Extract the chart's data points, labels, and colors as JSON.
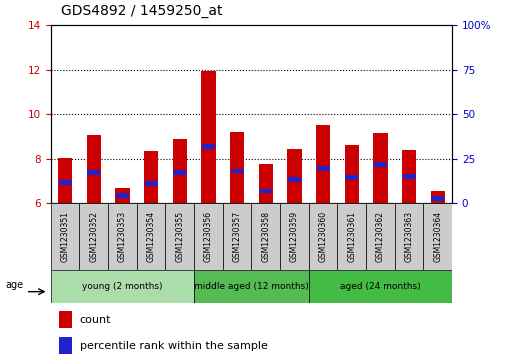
{
  "title": "GDS4892 / 1459250_at",
  "samples": [
    "GSM1230351",
    "GSM1230352",
    "GSM1230353",
    "GSM1230354",
    "GSM1230355",
    "GSM1230356",
    "GSM1230357",
    "GSM1230358",
    "GSM1230359",
    "GSM1230360",
    "GSM1230361",
    "GSM1230362",
    "GSM1230363",
    "GSM1230364"
  ],
  "count_values": [
    8.05,
    9.05,
    6.7,
    8.35,
    8.9,
    11.95,
    9.2,
    7.75,
    8.45,
    9.5,
    8.6,
    9.15,
    8.4,
    6.55
  ],
  "percentile_values": [
    6.95,
    7.4,
    6.35,
    6.9,
    7.4,
    8.55,
    7.45,
    6.55,
    7.05,
    7.55,
    7.15,
    7.75,
    7.2,
    6.2
  ],
  "ymin": 6,
  "ymax": 14,
  "yticks_left": [
    6,
    8,
    10,
    12,
    14
  ],
  "yticks_right": [
    0,
    25,
    50,
    75,
    100
  ],
  "bar_color": "#cc0000",
  "percentile_color": "#2222cc",
  "bar_width": 0.5,
  "group_samples": [
    5,
    4,
    5
  ],
  "group_labels": [
    "young (2 months)",
    "middle aged (12 months)",
    "aged (24 months)"
  ],
  "group_colors": [
    "#aaddaa",
    "#55bb55",
    "#44bb44"
  ],
  "age_label": "age",
  "legend_count_label": "count",
  "legend_percentile_label": "percentile rank within the sample",
  "tick_color_left": "#cc0000",
  "tick_color_right": "#0000cc",
  "bg_color": "#ffffff",
  "label_bg": "#cccccc"
}
